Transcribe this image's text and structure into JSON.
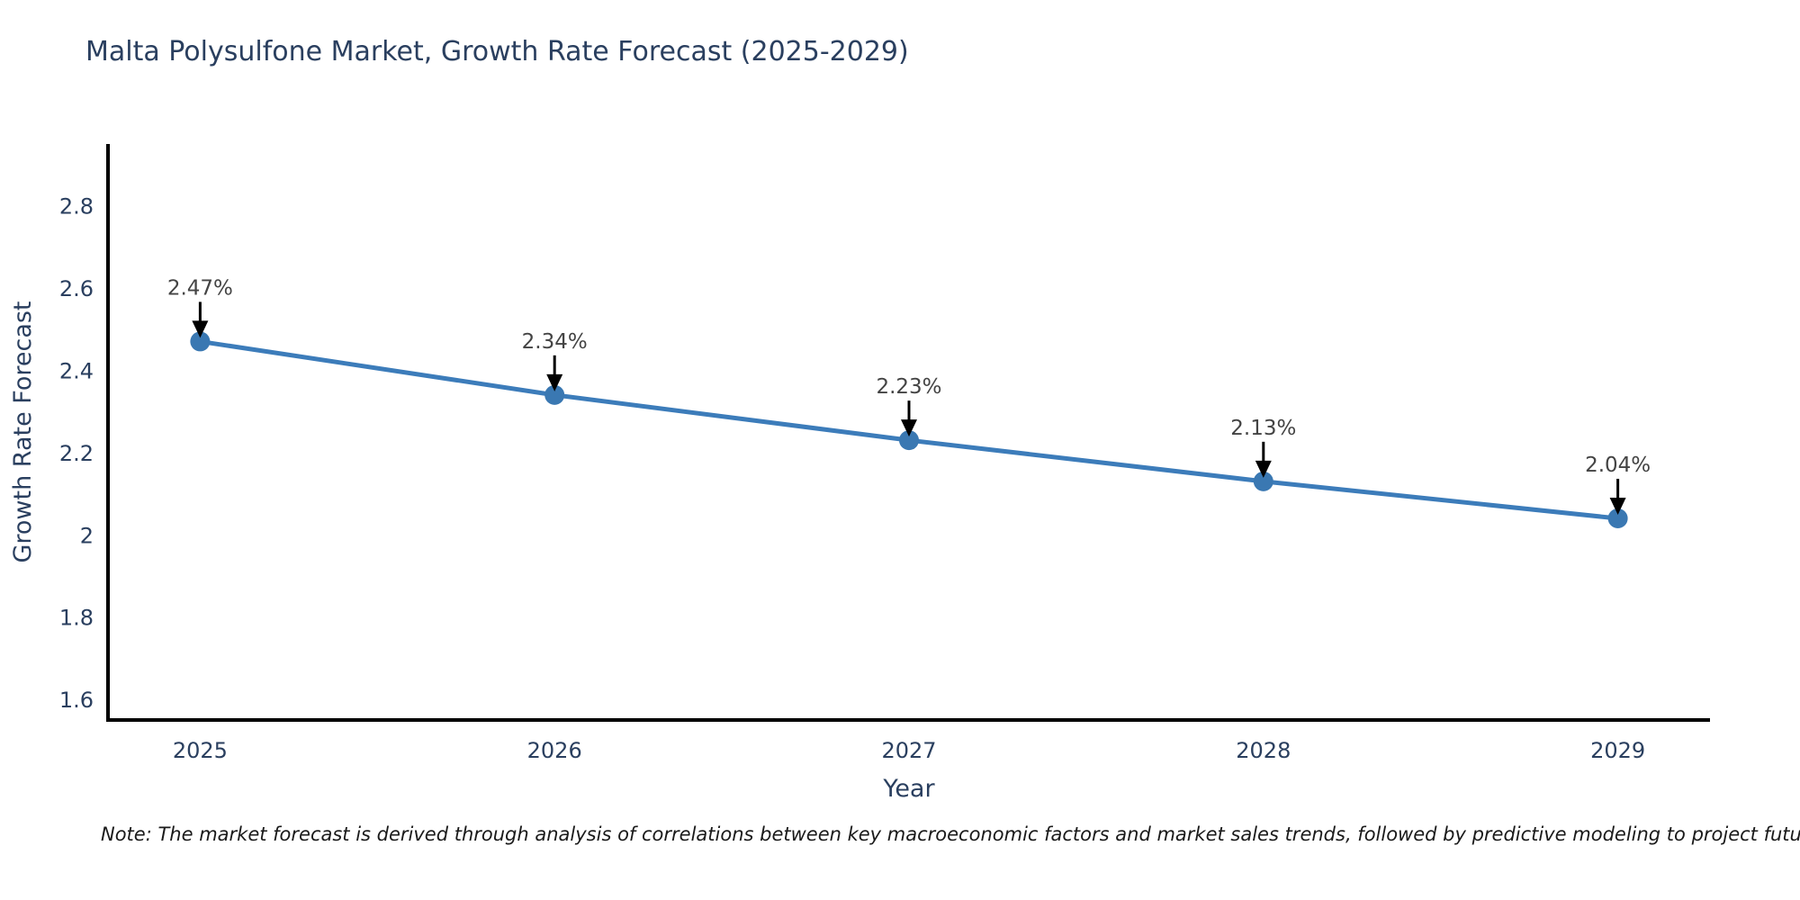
{
  "title": "Malta Polysulfone Market, Growth Rate Forecast (2025-2029)",
  "note": "Note: The market forecast is derived through analysis of correlations between key macroeconomic factors and market sales trends, followed by predictive modeling to project future sales",
  "chart_data": {
    "type": "line",
    "title": "Malta Polysulfone Market, Growth Rate Forecast (2025-2029)",
    "xlabel": "Year",
    "ylabel": "Growth Rate Forecast",
    "x": [
      2025,
      2026,
      2027,
      2028,
      2029
    ],
    "y": [
      2.47,
      2.34,
      2.23,
      2.13,
      2.04
    ],
    "point_labels": [
      "2.47%",
      "2.34%",
      "2.23%",
      "2.13%",
      "2.04%"
    ],
    "xticks": [
      2025,
      2026,
      2027,
      2028,
      2029
    ],
    "yticks": [
      1.6,
      1.8,
      2,
      2.2,
      2.4,
      2.6,
      2.8
    ],
    "xlim": [
      2024.74,
      2029.26
    ],
    "ylim": [
      1.55,
      2.95
    ],
    "grid": false,
    "legend": "none",
    "colors": {
      "line": "#3c7cba",
      "marker": "#3a78b2",
      "axis": "#000000",
      "tick_text": "#2a3f5f",
      "annotation_text": "#444444",
      "arrow": "#000000",
      "background": "#ffffff"
    }
  }
}
